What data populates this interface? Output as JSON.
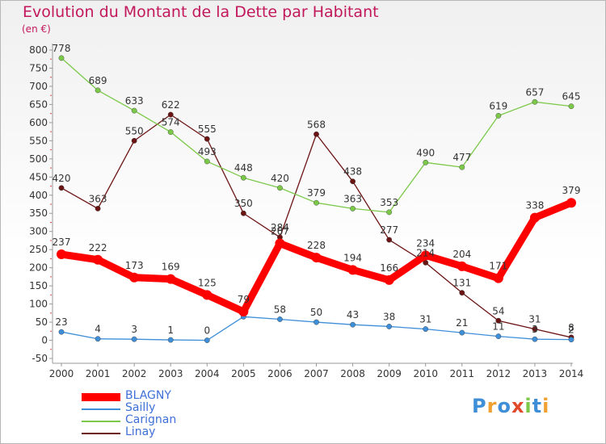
{
  "title": "Evolution du Montant de la Dette par Habitant",
  "unit": "(en €)",
  "logo": "Proxiti",
  "chart_data": {
    "type": "line",
    "title": "Evolution du Montant de la Dette par Habitant",
    "ylabel": "(en €)",
    "ylim": [
      -50,
      800
    ],
    "grid": false,
    "legend": "bottom-left",
    "x": [
      "2000",
      "2001",
      "2002",
      "2003",
      "2004",
      "2005",
      "2006",
      "2007",
      "2008",
      "2009",
      "2010",
      "2011",
      "2012",
      "2013",
      "2014"
    ],
    "yticks": [
      -50,
      0,
      50,
      100,
      150,
      200,
      250,
      300,
      350,
      400,
      450,
      500,
      550,
      600,
      650,
      700,
      750,
      800
    ],
    "series": [
      {
        "name": "Linay",
        "color": "#6b1414",
        "values": [
          420,
          363,
          550,
          622,
          555,
          350,
          284,
          568,
          438,
          277,
          214,
          131,
          54,
          31,
          8
        ]
      },
      {
        "name": "Carignan",
        "color": "#7cc94a",
        "values": [
          778,
          689,
          633,
          574,
          493,
          448,
          420,
          379,
          363,
          353,
          490,
          477,
          619,
          657,
          645
        ]
      },
      {
        "name": "Sailly",
        "color": "#3f8fd8",
        "values": [
          23,
          4,
          3,
          1,
          0,
          65,
          58,
          50,
          43,
          38,
          31,
          21,
          11,
          3,
          2
        ]
      },
      {
        "name": "BLAGNY",
        "color": "#ff0000",
        "values": [
          237,
          222,
          173,
          169,
          125,
          79,
          267,
          228,
          194,
          166,
          234,
          204,
          171,
          338,
          379
        ]
      }
    ],
    "labels": {
      "Linay": [
        "420",
        "363",
        "550",
        "622",
        "555",
        "350",
        "284",
        "568",
        "438",
        "277",
        "214",
        "131",
        "54",
        "31",
        "8"
      ],
      "Carignan": [
        "778",
        "689",
        "633",
        "574",
        "493",
        "448",
        "420",
        "379",
        "363",
        "353",
        "490",
        "477",
        "619",
        "657",
        "645"
      ],
      "Sailly": [
        "23",
        "4",
        "3",
        "1",
        "0",
        "",
        "58",
        "50",
        "43",
        "38",
        "31",
        "21",
        "11",
        "3",
        "2"
      ],
      "BLAGNY": [
        "237",
        "222",
        "173",
        "169",
        "125",
        "79",
        "267",
        "228",
        "194",
        "166",
        "234",
        "204",
        "171",
        "338",
        "379"
      ]
    }
  },
  "legend_items": [
    {
      "name": "BLAGNY",
      "color": "#ff0000"
    },
    {
      "name": "Sailly",
      "color": "#3f8fd8"
    },
    {
      "name": "Carignan",
      "color": "#7cc94a"
    },
    {
      "name": "Linay",
      "color": "#6b1414"
    }
  ]
}
